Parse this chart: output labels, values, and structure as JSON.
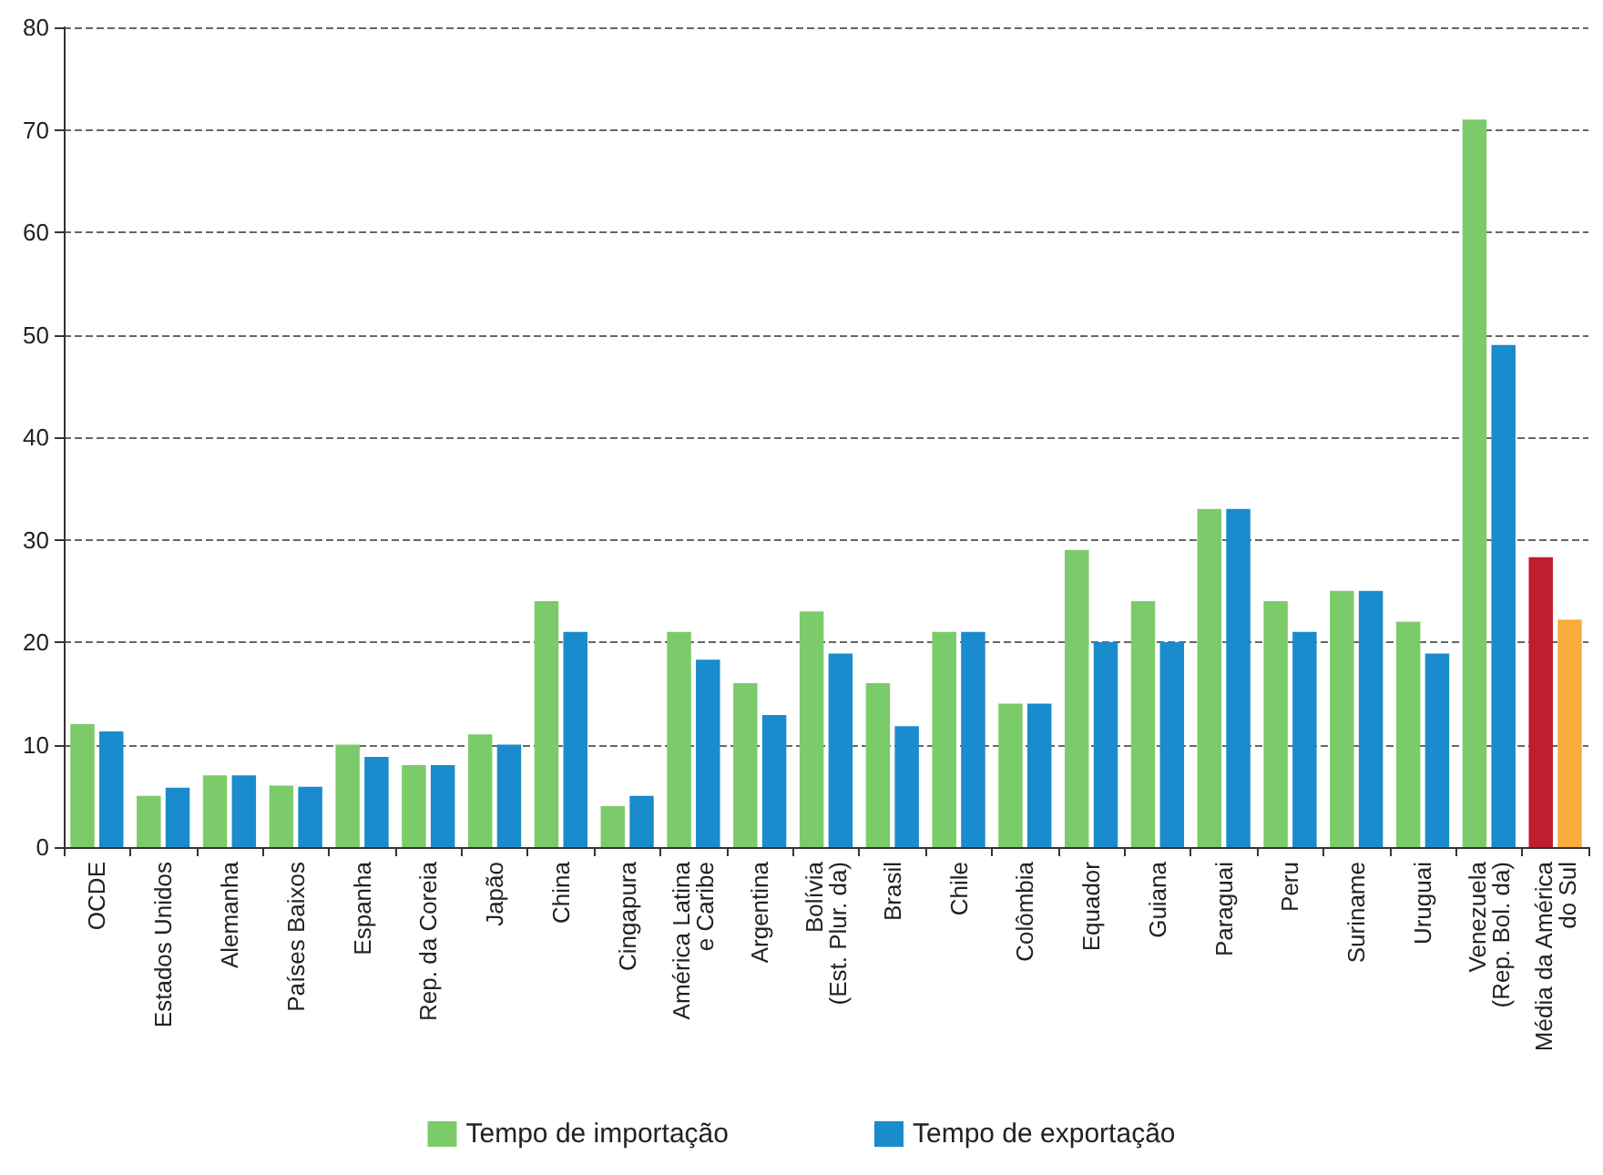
{
  "chart_data": {
    "type": "bar",
    "categories": [
      "OCDE",
      "Estados Unidos",
      "Alemanha",
      "Países Baixos",
      "Espanha",
      "Rep. da Coreia",
      "Japão",
      "China",
      "Cingapura",
      "América Latina\ne Caribe",
      "Argentina",
      "Bolívia\n(Est. Plur. da)",
      "Brasil",
      "Chile",
      "Colômbia",
      "Equador",
      "Guiana",
      "Paraguai",
      "Peru",
      "Suriname",
      "Uruguai",
      "Venezuela\n(Rep. Bol. da)",
      "Média da América\ndo Sul"
    ],
    "series": [
      {
        "name": "Tempo de importação",
        "color": "#7ccb6a",
        "colors": [
          "#7ccb6a",
          "#7ccb6a",
          "#7ccb6a",
          "#7ccb6a",
          "#7ccb6a",
          "#7ccb6a",
          "#7ccb6a",
          "#7ccb6a",
          "#7ccb6a",
          "#7ccb6a",
          "#7ccb6a",
          "#7ccb6a",
          "#7ccb6a",
          "#7ccb6a",
          "#7ccb6a",
          "#7ccb6a",
          "#7ccb6a",
          "#7ccb6a",
          "#7ccb6a",
          "#7ccb6a",
          "#7ccb6a",
          "#7ccb6a",
          "#be1e2d"
        ],
        "values": [
          12,
          5,
          7,
          6,
          10,
          8,
          11,
          24,
          4,
          21,
          16,
          23,
          16,
          21,
          14,
          29,
          24,
          33,
          24,
          25,
          22,
          71,
          28.3
        ]
      },
      {
        "name": "Tempo de exportação",
        "color": "#1a8bcc",
        "colors": [
          "#1a8bcc",
          "#1a8bcc",
          "#1a8bcc",
          "#1a8bcc",
          "#1a8bcc",
          "#1a8bcc",
          "#1a8bcc",
          "#1a8bcc",
          "#1a8bcc",
          "#1a8bcc",
          "#1a8bcc",
          "#1a8bcc",
          "#1a8bcc",
          "#1a8bcc",
          "#1a8bcc",
          "#1a8bcc",
          "#1a8bcc",
          "#1a8bcc",
          "#1a8bcc",
          "#1a8bcc",
          "#1a8bcc",
          "#1a8bcc",
          "#f9ad3c"
        ],
        "values": [
          11.3,
          5.8,
          7,
          5.9,
          8.8,
          8,
          10,
          21,
          5,
          18.3,
          12.9,
          18.9,
          11.8,
          21,
          14,
          20,
          20,
          33,
          21,
          25,
          18.9,
          49,
          22.2
        ]
      }
    ],
    "ylim": [
      0,
      80
    ],
    "yticks": [
      0,
      10,
      20,
      30,
      40,
      50,
      60,
      70,
      80
    ],
    "grid": "y",
    "legend": "bottom"
  }
}
